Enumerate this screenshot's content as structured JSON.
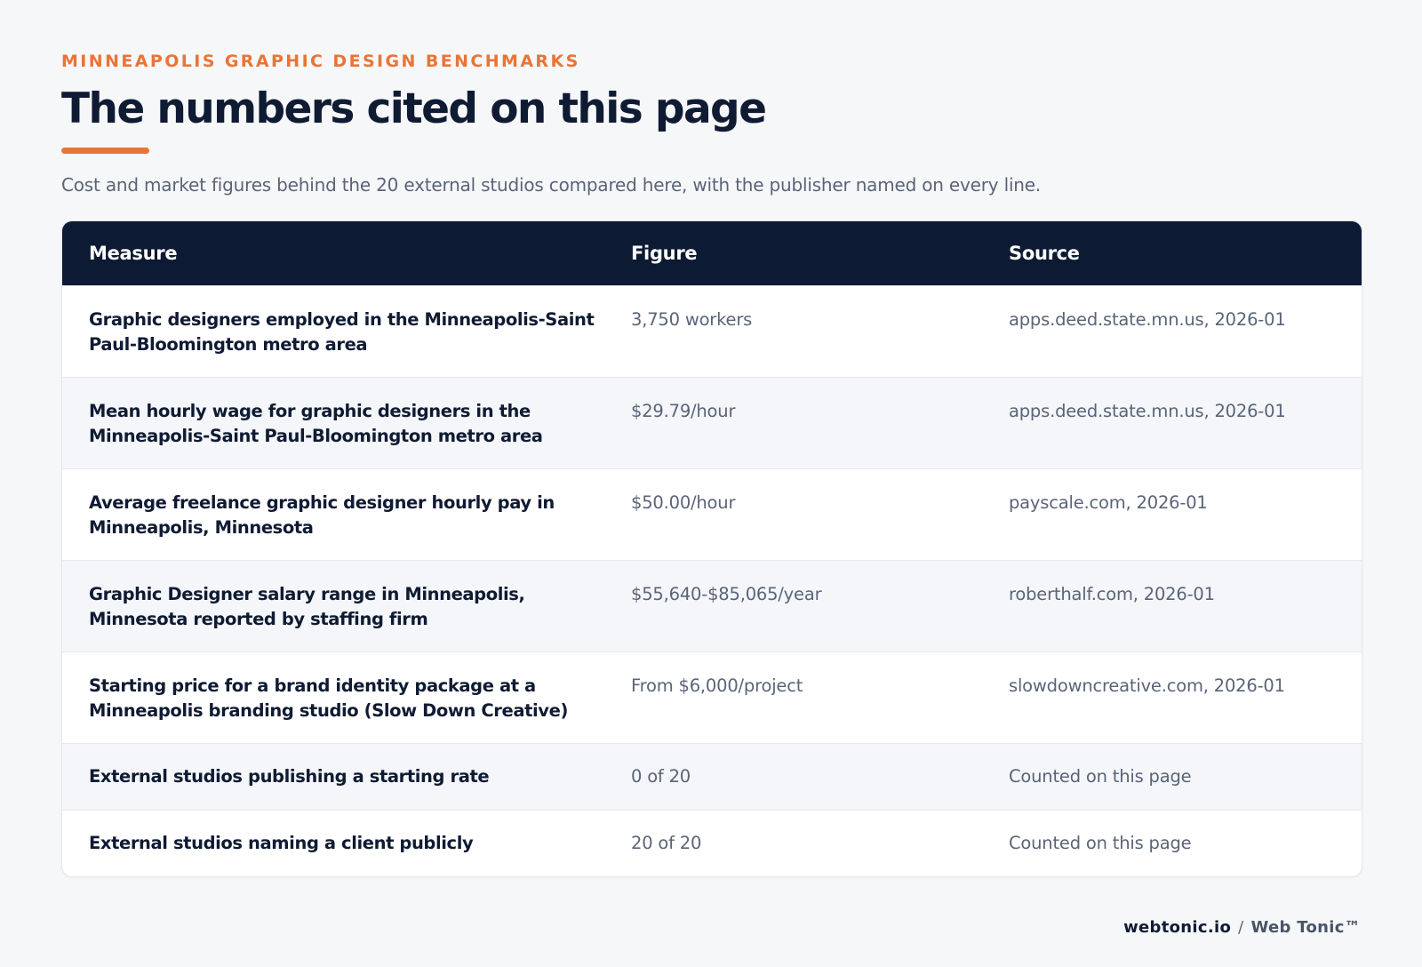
{
  "header": {
    "eyebrow": "MINNEAPOLIS GRAPHIC DESIGN BENCHMARKS",
    "title": "The numbers cited on this page",
    "subtitle": "Cost and market figures behind the 20 external studios compared here, with the publisher named on every line.",
    "accent_color": "#ea7436"
  },
  "table": {
    "header_bg": "#0c1a33",
    "columns": [
      "Measure",
      "Figure",
      "Source"
    ],
    "rows": [
      {
        "measure": "Graphic designers employed in the Minneapolis-Saint Paul-Bloomington metro area",
        "figure": "3,750 workers",
        "source": "apps.deed.state.mn.us, 2026-01"
      },
      {
        "measure": "Mean hourly wage for graphic designers in the Minneapolis-Saint Paul-Bloomington metro area",
        "figure": "$29.79/hour",
        "source": "apps.deed.state.mn.us, 2026-01"
      },
      {
        "measure": "Average freelance graphic designer hourly pay in Minneapolis, Minnesota",
        "figure": "$50.00/hour",
        "source": "payscale.com, 2026-01"
      },
      {
        "measure": "Graphic Designer salary range in Minneapolis, Minnesota reported by staffing firm",
        "figure": "$55,640-$85,065/year",
        "source": "roberthalf.com, 2026-01"
      },
      {
        "measure": "Starting price for a brand identity package at a Minneapolis branding studio (Slow Down Creative)",
        "figure": "From $6,000/project",
        "source": "slowdowncreative.com, 2026-01"
      },
      {
        "measure": "External studios publishing a starting rate",
        "figure": "0 of 20",
        "source": "Counted on this page"
      },
      {
        "measure": "External studios naming a client publicly",
        "figure": "20 of 20",
        "source": "Counted on this page"
      }
    ]
  },
  "footer": {
    "domain": "webtonic.io",
    "separator": "/",
    "brand": "Web Tonic™"
  }
}
